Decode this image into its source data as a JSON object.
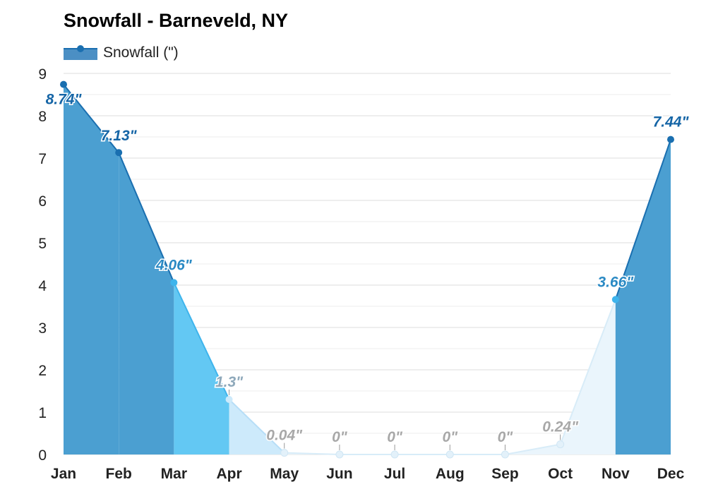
{
  "title": "Snowfall - Barneveld, NY",
  "legend": {
    "label": "Snowfall (\")",
    "color": "#1a6fb0"
  },
  "chart_data": {
    "type": "area",
    "title": "Snowfall - Barneveld, NY",
    "categories": [
      "Jan",
      "Feb",
      "Mar",
      "Apr",
      "May",
      "Jun",
      "Jul",
      "Aug",
      "Sep",
      "Oct",
      "Nov",
      "Dec"
    ],
    "series": [
      {
        "name": "Snowfall (\")",
        "values": [
          8.74,
          7.13,
          4.06,
          1.3,
          0.04,
          0,
          0,
          0,
          0,
          0.24,
          3.66,
          7.44
        ]
      }
    ],
    "data_labels": [
      "8.74\"",
      "7.13\"",
      "4.06\"",
      "1.3\"",
      "0.04\"",
      "0\"",
      "0\"",
      "0\"",
      "0\"",
      "0.24\"",
      "3.66\"",
      "7.44\""
    ],
    "y_ticks": [
      "0",
      "1",
      "2",
      "3",
      "4",
      "5",
      "6",
      "7",
      "8",
      "9"
    ],
    "ylim": [
      0,
      9
    ],
    "grid": true,
    "legend_position": "top-left",
    "colors": {
      "heavy": "#4b9fd1",
      "medium": "#63c8f3",
      "light": "#cdeafb",
      "trace": "#eaf5fc",
      "label_heavy": "#1565a6",
      "label_medium": "#2b8ac4",
      "label_light": "#8fa9bb",
      "label_trace": "#a8a8a8"
    }
  }
}
